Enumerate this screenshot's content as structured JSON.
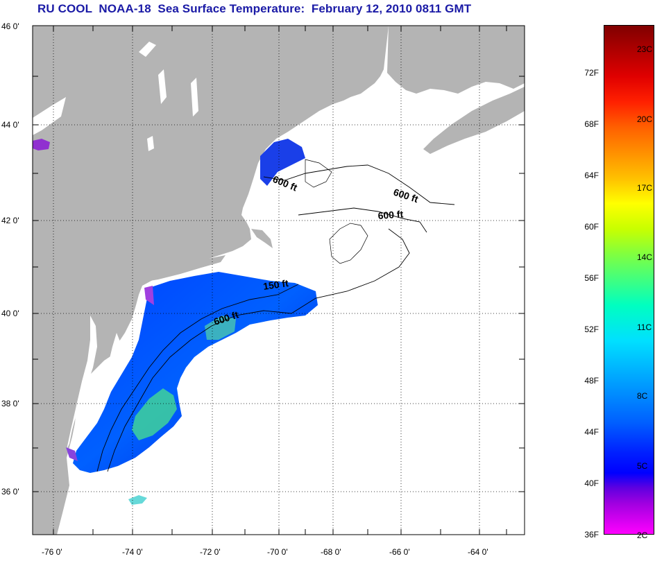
{
  "title": "RU COOL  NOAA-18  Sea Surface Temperature:  February 12, 2010 0811 GMT",
  "lat_labels": [
    "46 0'",
    "44 0'",
    "42 0'",
    "40 0'",
    "38 0'",
    "36 0'"
  ],
  "lon_labels": [
    "-76 0'",
    "-74 0'",
    "-72 0'",
    "-70 0'",
    "-68 0'",
    "-66 0'",
    "-64 0'"
  ],
  "contour_labels": [
    "600 ft",
    "600 ft",
    "600 ft",
    "150 ft",
    "600 ft"
  ],
  "colorbar": {
    "fahrenheit": [
      "72F",
      "68F",
      "64F",
      "60F",
      "56F",
      "52F",
      "48F",
      "44F",
      "40F",
      "36F"
    ],
    "celsius": [
      "23C",
      "20C",
      "17C",
      "14C",
      "11C",
      "8C",
      "5C",
      "2C"
    ]
  },
  "colors": {
    "land": "#b4b4b4",
    "title": "#1a1aa6",
    "grid": "#000000"
  }
}
